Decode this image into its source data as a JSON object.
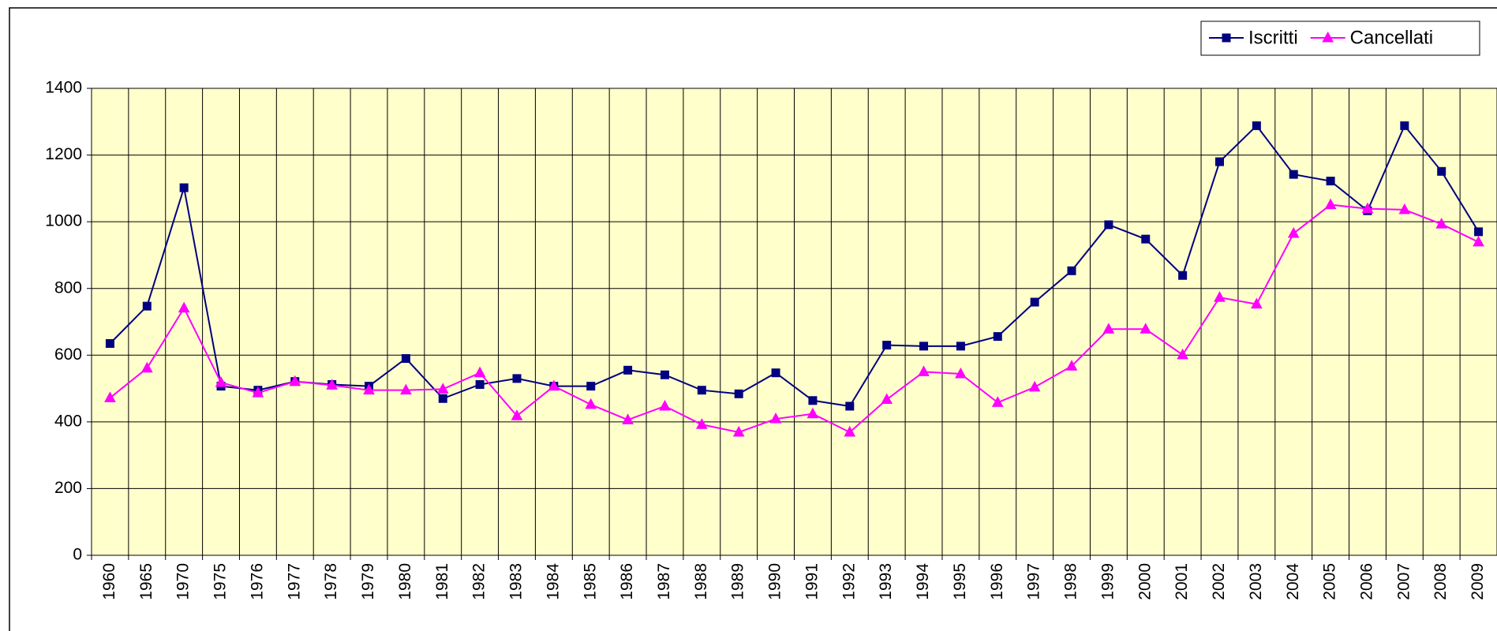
{
  "chart_data": {
    "type": "line",
    "categories": [
      "1960",
      "1965",
      "1970",
      "1975",
      "1976",
      "1977",
      "1978",
      "1979",
      "1980",
      "1981",
      "1982",
      "1983",
      "1984",
      "1985",
      "1986",
      "1987",
      "1988",
      "1989",
      "1990",
      "1991",
      "1992",
      "1993",
      "1994",
      "1995",
      "1996",
      "1997",
      "1998",
      "1999",
      "2000",
      "2001",
      "2002",
      "2003",
      "2004",
      "2005",
      "2006",
      "2007",
      "2008",
      "2009"
    ],
    "series": [
      {
        "name": "Iscritti",
        "color": "#000080",
        "marker": "square",
        "values": [
          635,
          747,
          1102,
          507,
          495,
          521,
          512,
          507,
          590,
          470,
          512,
          530,
          507,
          507,
          555,
          541,
          495,
          484,
          547,
          464,
          447,
          630,
          627,
          627,
          656,
          759,
          853,
          991,
          948,
          839,
          1180,
          1288,
          1142,
          1122,
          1033,
          1288,
          1151,
          970
        ]
      },
      {
        "name": "Cancellati",
        "color": "#ff00ff",
        "marker": "triangle",
        "values": [
          472,
          561,
          741,
          518,
          487,
          521,
          510,
          495,
          495,
          498,
          547,
          418,
          507,
          452,
          406,
          447,
          392,
          369,
          409,
          424,
          369,
          467,
          550,
          544,
          458,
          504,
          567,
          678,
          678,
          601,
          773,
          753,
          965,
          1051,
          1039,
          1036,
          993,
          939
        ]
      }
    ],
    "ylim": [
      0,
      1400
    ],
    "yticks": [
      0,
      200,
      400,
      600,
      800,
      1000,
      1200,
      1400
    ],
    "grid": true,
    "plot_background": "#ffffcc",
    "legend": "top-right"
  }
}
